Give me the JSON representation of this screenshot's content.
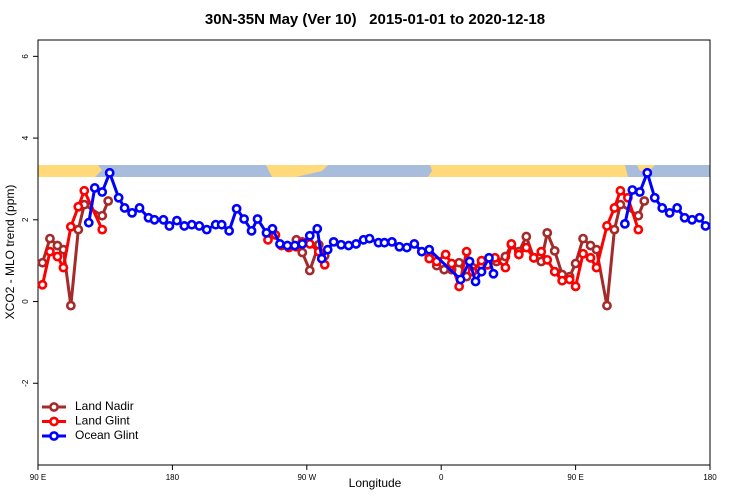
{
  "chart_data": {
    "type": "line",
    "title": "30N-35N May (Ver 10)   2015-01-01 to 2020-12-18",
    "x_label": "Longitude",
    "y_label": "XCO2 - MLO trend (ppm)",
    "xlim": [
      90,
      540
    ],
    "ylim": [
      -4,
      6.4
    ],
    "xticks": [
      {
        "value": 90,
        "label": "90 E"
      },
      180,
      {
        "value": 270,
        "label": "90 W"
      },
      {
        "value": 360,
        "label": "0"
      },
      {
        "value": 450,
        "label": "90 E"
      },
      {
        "value": 540,
        "label": "180"
      }
    ],
    "yticks": [
      -2,
      0,
      2,
      4,
      6
    ],
    "legend": "bottom-left",
    "series": [
      {
        "name": "Land Nadir",
        "color": "#a52a2a",
        "x": [
          93,
          98,
          103,
          107,
          112,
          117,
          121,
          133,
          137,
          null,
          263,
          267,
          272,
          278,
          282,
          null,
          352,
          357,
          362,
          367,
          372,
          377,
          381,
          387,
          391,
          397,
          403,
          407,
          412,
          417,
          422,
          427,
          431,
          436,
          441,
          446,
          450,
          455,
          460,
          464,
          471,
          476,
          480,
          492,
          496
        ],
        "values": [
          0.95,
          1.54,
          1.37,
          1.27,
          -0.1,
          1.76,
          2.37,
          2.1,
          2.46,
          null,
          1.51,
          1.2,
          0.76,
          1.39,
          1.12,
          null,
          1.07,
          0.88,
          0.78,
          0.78,
          0.95,
          0.61,
          0.83,
          0.9,
          0.9,
          0.98,
          1.1,
          1.39,
          1.22,
          1.59,
          1.07,
          0.98,
          1.68,
          1.24,
          0.66,
          0.61,
          0.93,
          1.54,
          1.37,
          1.27,
          -0.1,
          1.76,
          2.37,
          2.1,
          2.46
        ]
      },
      {
        "name": "Land Glint",
        "color": "#ff0000",
        "x": [
          93,
          98,
          103,
          107,
          112,
          117,
          121,
          133,
          null,
          244,
          249,
          253,
          258,
          263,
          267,
          272,
          278,
          282,
          null,
          352,
          357,
          363,
          367,
          372,
          377,
          381,
          387,
          391,
          396,
          403,
          407,
          412,
          417,
          422,
          427,
          431,
          436,
          441,
          446,
          450,
          455,
          460,
          464,
          471,
          476,
          480,
          485,
          492
        ],
        "values": [
          0.41,
          1.22,
          1.1,
          0.83,
          1.83,
          2.32,
          2.71,
          1.76,
          null,
          1.51,
          1.63,
          1.37,
          1.32,
          1.34,
          1.46,
          1.41,
          1.22,
          0.9,
          null,
          1.05,
          0.98,
          1.15,
          0.93,
          0.37,
          1.22,
          0.73,
          1.0,
          0.9,
          1.07,
          0.83,
          1.41,
          1.15,
          1.32,
          1.07,
          1.22,
          1.02,
          0.73,
          0.51,
          0.54,
          0.37,
          1.17,
          1.07,
          0.83,
          1.85,
          2.29,
          2.71,
          2.54,
          1.76
        ]
      },
      {
        "name": "Ocean Glint",
        "color": "#0000ff",
        "x": [
          124,
          128,
          133,
          138,
          144,
          148,
          153,
          158,
          164,
          168,
          174,
          178,
          183,
          188,
          193,
          198,
          203,
          209,
          213,
          218,
          223,
          228,
          233,
          237,
          243,
          247,
          252,
          257,
          262,
          267,
          272,
          277,
          280,
          284,
          288,
          293,
          298,
          303,
          308,
          312,
          318,
          322,
          327,
          332,
          337,
          342,
          347,
          352,
          373,
          379,
          383,
          387,
          392,
          395,
          null,
          483,
          488,
          493,
          498,
          503,
          508,
          513,
          518,
          523,
          528,
          533,
          537
        ],
        "values": [
          1.93,
          2.78,
          2.68,
          3.15,
          2.54,
          2.29,
          2.17,
          2.29,
          2.05,
          2.0,
          2.0,
          1.85,
          1.98,
          1.85,
          1.88,
          1.85,
          1.76,
          1.88,
          1.88,
          1.73,
          2.27,
          2.02,
          1.73,
          2.02,
          1.68,
          1.78,
          1.41,
          1.37,
          1.37,
          1.41,
          1.61,
          1.78,
          1.05,
          1.27,
          1.46,
          1.39,
          1.37,
          1.41,
          1.51,
          1.54,
          1.44,
          1.44,
          1.46,
          1.34,
          1.32,
          1.41,
          1.22,
          1.27,
          0.54,
          0.98,
          0.49,
          0.73,
          1.07,
          0.68,
          null,
          1.9,
          2.73,
          2.68,
          3.15,
          2.54,
          2.29,
          2.17,
          2.29,
          2.05,
          2.0,
          2.05,
          1.85
        ]
      }
    ]
  }
}
